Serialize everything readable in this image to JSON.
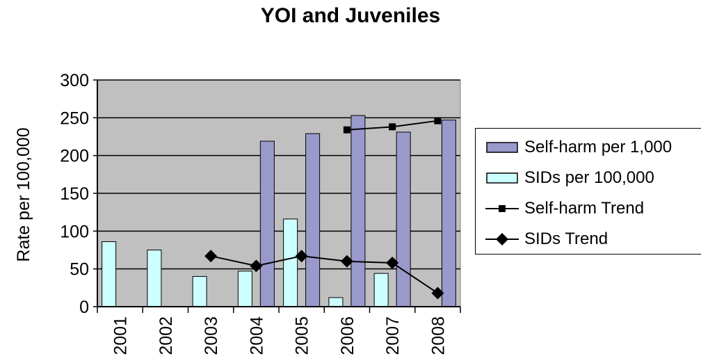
{
  "chart_data": {
    "type": "bar",
    "title": "YOI and Juveniles",
    "xlabel": "",
    "ylabel": "Rate per 100,000",
    "ylim": [
      0,
      300
    ],
    "yticks": [
      0,
      50,
      100,
      150,
      200,
      250,
      300
    ],
    "categories": [
      "2001",
      "2002",
      "2003",
      "2004",
      "2005",
      "2006",
      "2007",
      "2008"
    ],
    "grid": true,
    "legend_position": "right",
    "bar_series": [
      {
        "name": "Self-harm per 1,000",
        "color": "#9999cc",
        "values": [
          null,
          null,
          null,
          219,
          229,
          253,
          231,
          247
        ]
      },
      {
        "name": "SIDs per 100,000",
        "color": "#ccffff",
        "values": [
          86,
          75,
          40,
          47,
          116,
          12,
          44,
          null
        ]
      }
    ],
    "line_series": [
      {
        "name": "Self-harm Trend",
        "marker": "square",
        "values": [
          null,
          null,
          null,
          null,
          null,
          234,
          238,
          246
        ]
      },
      {
        "name": "SIDs Trend",
        "marker": "diamond",
        "values": [
          null,
          null,
          67,
          54,
          67,
          60,
          58,
          18
        ]
      }
    ]
  }
}
